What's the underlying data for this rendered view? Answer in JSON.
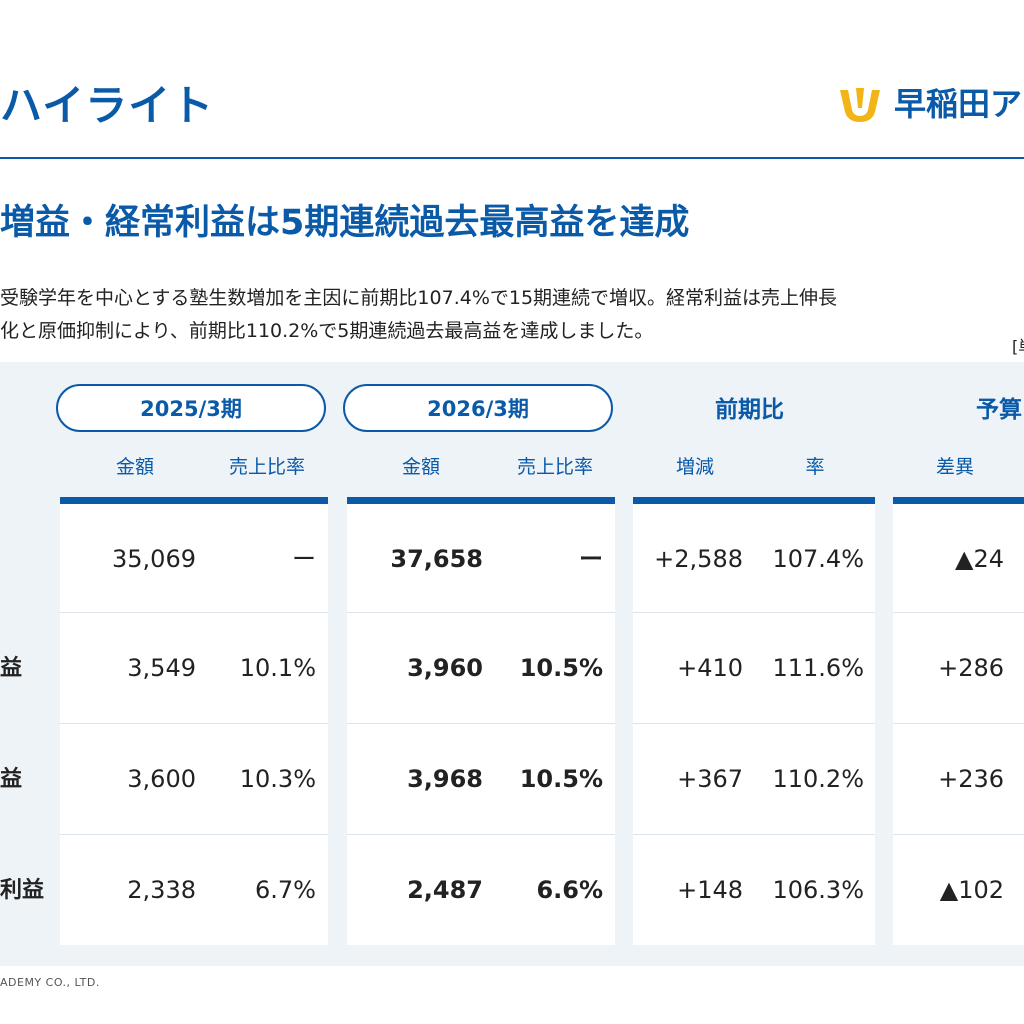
{
  "header": {
    "title": "ハイライト",
    "logo_text": "早稲田ア"
  },
  "headline": "増益・経常利益は5期連続過去最高益を達成",
  "description": [
    "受験学年を中心とする塾生数増加を主因に前期比107.4%で15期連続で増収。経常利益は売上伸長",
    "化と原価抑制により、前期比110.2%で5期連続過去最高益を達成しました。"
  ],
  "unit_note": "[単",
  "table": {
    "period_prev": "2025/3期",
    "period_curr": "2026/3期",
    "yoy_label": "前期比",
    "budget_label": "予算",
    "subheaders": {
      "amount_prev": "金額",
      "ratio_prev": "売上比率",
      "amount_curr": "金額",
      "ratio_curr": "売上比率",
      "change": "増減",
      "rate": "率",
      "diff": "差異"
    },
    "rows": [
      {
        "label": "",
        "prev_amount": "35,069",
        "prev_ratio": "ー",
        "curr_amount": "37,658",
        "curr_ratio": "ー",
        "change": "+2,588",
        "rate": "107.4%",
        "diff": "▲24"
      },
      {
        "label": "益",
        "prev_amount": "3,549",
        "prev_ratio": "10.1%",
        "curr_amount": "3,960",
        "curr_ratio": "10.5%",
        "change": "+410",
        "rate": "111.6%",
        "diff": "+286"
      },
      {
        "label": "益",
        "prev_amount": "3,600",
        "prev_ratio": "10.3%",
        "curr_amount": "3,968",
        "curr_ratio": "10.5%",
        "change": "+367",
        "rate": "110.2%",
        "diff": "+236"
      },
      {
        "label": "利益",
        "prev_amount": "2,338",
        "prev_ratio": "6.7%",
        "curr_amount": "2,487",
        "curr_ratio": "6.6%",
        "change": "+148",
        "rate": "106.3%",
        "diff": "▲102"
      }
    ]
  },
  "footer": "ADEMY CO., LTD.",
  "colors": {
    "brand_blue": "#0a5aa8",
    "logo_yellow": "#f2b518",
    "panel_bg": "#eef3f8"
  }
}
